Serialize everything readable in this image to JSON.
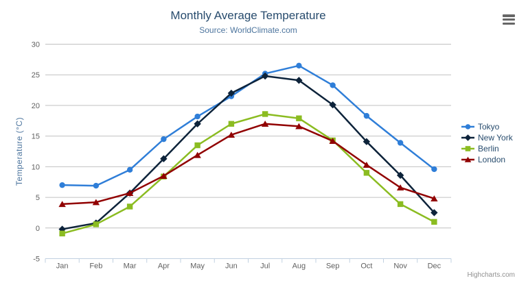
{
  "chart_data": {
    "type": "line",
    "title": "Monthly Average Temperature",
    "subtitle": "Source: WorldClimate.com",
    "xlabel": "",
    "ylabel": "Temperature (°C)",
    "categories": [
      "Jan",
      "Feb",
      "Mar",
      "Apr",
      "May",
      "Jun",
      "Jul",
      "Aug",
      "Sep",
      "Oct",
      "Nov",
      "Dec"
    ],
    "ylim": [
      -5,
      30
    ],
    "yticks": [
      -5,
      0,
      5,
      10,
      15,
      20,
      25,
      30
    ],
    "grid": true,
    "legend_position": "right",
    "series": [
      {
        "name": "Tokyo",
        "color": "#2f7ed8",
        "marker": "circle",
        "values": [
          7.0,
          6.9,
          9.5,
          14.5,
          18.2,
          21.5,
          25.2,
          26.5,
          23.3,
          18.3,
          13.9,
          9.6
        ]
      },
      {
        "name": "New York",
        "color": "#0d233a",
        "marker": "diamond",
        "values": [
          -0.2,
          0.8,
          5.7,
          11.3,
          17.0,
          22.0,
          24.8,
          24.1,
          20.1,
          14.1,
          8.6,
          2.5
        ]
      },
      {
        "name": "Berlin",
        "color": "#8bbc21",
        "marker": "square",
        "values": [
          -0.9,
          0.6,
          3.5,
          8.4,
          13.5,
          17.0,
          18.6,
          17.9,
          14.3,
          9.0,
          3.9,
          1.0
        ]
      },
      {
        "name": "London",
        "color": "#910000",
        "marker": "triangle",
        "values": [
          3.9,
          4.2,
          5.7,
          8.5,
          11.9,
          15.2,
          17.0,
          16.6,
          14.2,
          10.3,
          6.6,
          4.8
        ]
      }
    ]
  },
  "theme": {
    "title_color": "#274b6d",
    "subtitle_color": "#4d759e",
    "axis_title_color": "#4d759e",
    "axis_label_color": "#606060",
    "grid_color": "#c0c0c0",
    "axis_line_color": "#c0d0e0",
    "legend_text_color": "#274b6d",
    "credit_color": "#909090",
    "menu_icon_color": "#666666",
    "background": "#ffffff"
  },
  "icons": {
    "export_menu": "hamburger-icon"
  },
  "credit": {
    "label": "Highcharts.com"
  }
}
